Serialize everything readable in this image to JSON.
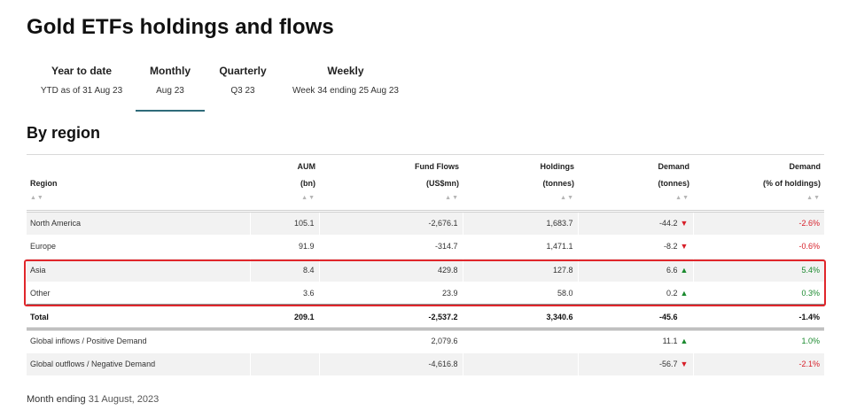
{
  "page": {
    "title": "Gold ETFs holdings and flows"
  },
  "tabs": [
    {
      "label": "Year to date",
      "sub": "YTD as of 31 Aug 23"
    },
    {
      "label": "Monthly",
      "sub": "Aug 23"
    },
    {
      "label": "Quarterly",
      "sub": "Q3 23"
    },
    {
      "label": "Weekly",
      "sub": "Week 34 ending 25 Aug 23"
    }
  ],
  "section": {
    "title": "By region"
  },
  "table": {
    "headers": {
      "region": "Region",
      "aum_1": "AUM",
      "aum_2": "(bn)",
      "flows_1": "Fund Flows",
      "flows_2": "(US$mn)",
      "holdings_1": "Holdings",
      "holdings_2": "(tonnes)",
      "demand_1": "Demand",
      "demand_2": "(tonnes)",
      "demandpct_1": "Demand",
      "demandpct_2": "(% of holdings)",
      "sort_glyph": "▲▼"
    },
    "rows": [
      {
        "region": "North America",
        "aum": "105.1",
        "flows": "-2,676.1",
        "holdings": "1,683.7",
        "demand": "-44.2",
        "arrow": "▼",
        "demand_pct": "-2.6%"
      },
      {
        "region": "Europe",
        "aum": "91.9",
        "flows": "-314.7",
        "holdings": "1,471.1",
        "demand": "-8.2",
        "arrow": "▼",
        "demand_pct": "-0.6%"
      },
      {
        "region": "Asia",
        "aum": "8.4",
        "flows": "429.8",
        "holdings": "127.8",
        "demand": "6.6",
        "arrow": "▲",
        "demand_pct": "5.4%"
      },
      {
        "region": "Other",
        "aum": "3.6",
        "flows": "23.9",
        "holdings": "58.0",
        "demand": "0.2",
        "arrow": "▲",
        "demand_pct": "0.3%"
      }
    ],
    "total": {
      "region": "Total",
      "aum": "209.1",
      "flows": "-2,537.2",
      "holdings": "3,340.6",
      "demand": "-45.6",
      "demand_pct": "-1.4%"
    },
    "global": [
      {
        "region": "Global inflows / Positive Demand",
        "flows": "2,079.6",
        "demand": "11.1",
        "arrow": "▲",
        "demand_pct": "1.0%"
      },
      {
        "region": "Global outflows / Negative Demand",
        "flows": "-4,616.8",
        "demand": "-56.7",
        "arrow": "▼",
        "demand_pct": "-2.1%"
      }
    ]
  },
  "footnote": {
    "label": "Month ending",
    "date": "31 August, 2023"
  },
  "colors": {
    "accent": "#2f6b7a",
    "negative": "#d71e28",
    "positive": "#1a8a2e",
    "highlight": "#e0262b"
  }
}
